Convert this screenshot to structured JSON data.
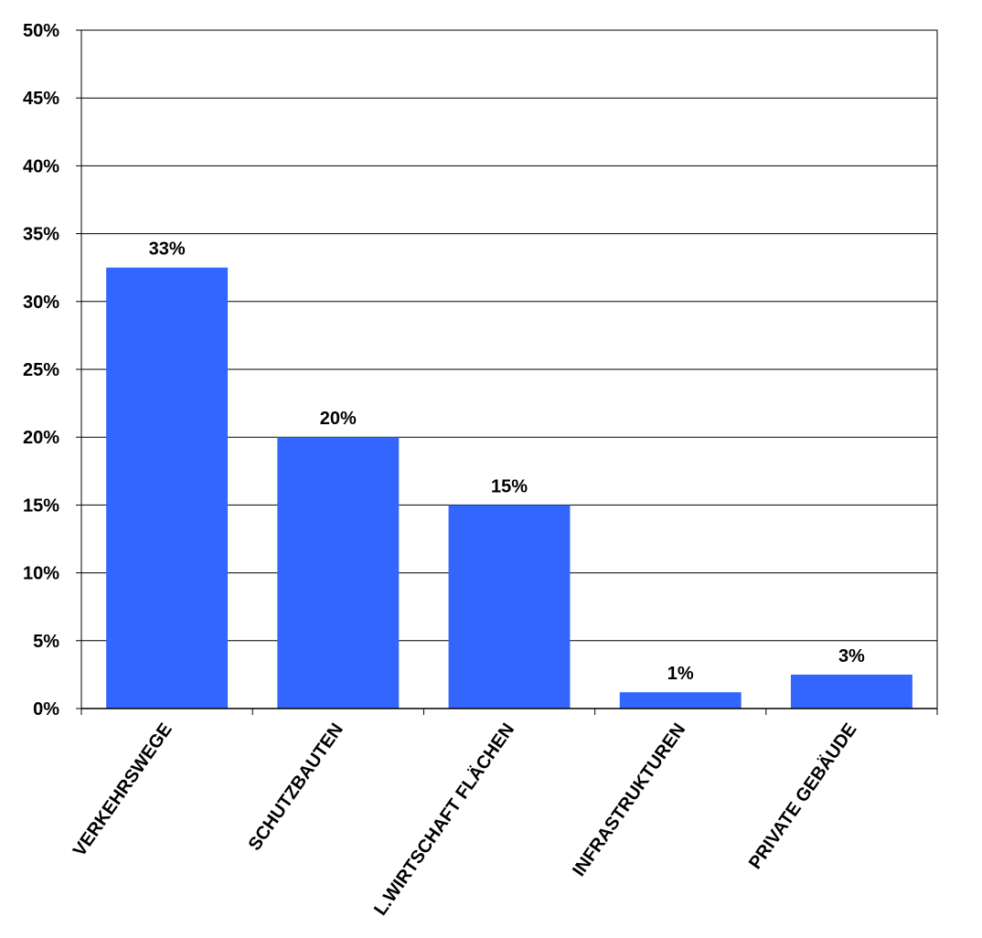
{
  "chart_data": {
    "type": "bar",
    "categories": [
      "VERKEHRSWEGE",
      "SCHUTZBAUTEN",
      "L.WIRTSCHAFT FLÄCHEN",
      "INFRASTRUKTUREN",
      "PRIVATE GEBÄUDE"
    ],
    "values": [
      32.5,
      20,
      15,
      1.2,
      2.5
    ],
    "value_labels": [
      "33%",
      "20%",
      "15%",
      "1%",
      "3%"
    ],
    "color": "#3366ff",
    "ylim": [
      0,
      50
    ],
    "yticks": [
      {
        "value": 0,
        "label": "0%"
      },
      {
        "value": 5,
        "label": "5%"
      },
      {
        "value": 10,
        "label": "10%"
      },
      {
        "value": 15,
        "label": "15%"
      },
      {
        "value": 20,
        "label": "20%"
      },
      {
        "value": 25,
        "label": "25%"
      },
      {
        "value": 30,
        "label": "30%"
      },
      {
        "value": 35,
        "label": "35%"
      },
      {
        "value": 40,
        "label": "40%"
      },
      {
        "value": 45,
        "label": "45%"
      },
      {
        "value": 50,
        "label": "50%"
      }
    ],
    "grid": true
  }
}
